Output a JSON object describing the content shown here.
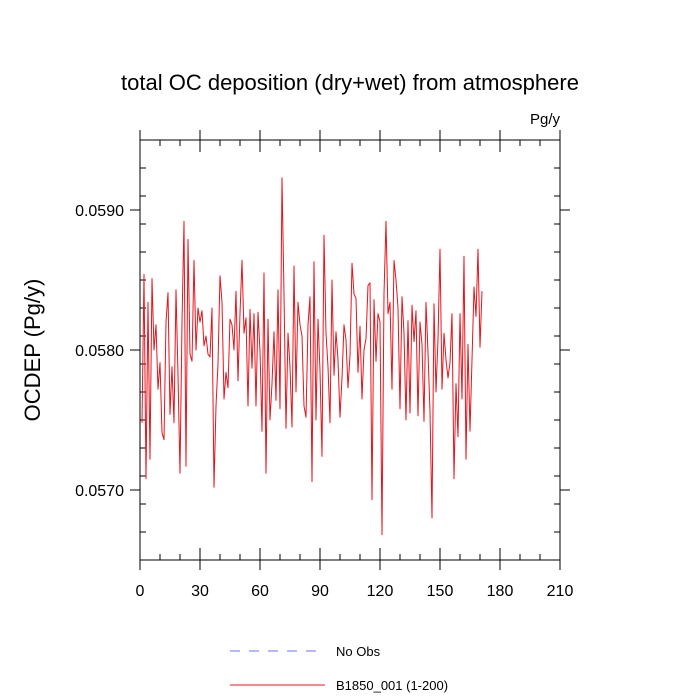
{
  "chart_data": {
    "type": "line",
    "title": "total OC deposition (dry+wet) from atmosphere",
    "units_label": "Pg/y",
    "xlabel": "",
    "ylabel": "OCDEP  (Pg/y)",
    "xlim": [
      0,
      210
    ],
    "ylim": [
      0.0565,
      0.0595
    ],
    "xticks": [
      0,
      30,
      60,
      90,
      120,
      150,
      180,
      210
    ],
    "xtick_labels": [
      "0",
      "30",
      "60",
      "90",
      "120",
      "150",
      "180",
      "210"
    ],
    "yticks": [
      0.057,
      0.058,
      0.059
    ],
    "ytick_labels": [
      "0.0570",
      "0.0580",
      "0.0590"
    ],
    "grid": false,
    "legend_placement": "bottom",
    "series": [
      {
        "name": "No Obs",
        "color": "#6f6fff",
        "style": "dashed",
        "values": []
      },
      {
        "name": "B1850_001 (1-200)",
        "color": "#e8141c",
        "style": "solid",
        "x_start": 1,
        "values": [
          0.05748,
          0.05854,
          0.05708,
          0.05834,
          0.05722,
          0.05851,
          0.058,
          0.05818,
          0.05772,
          0.05791,
          0.05741,
          0.05736,
          0.0582,
          0.05841,
          0.05754,
          0.05788,
          0.05748,
          0.05843,
          0.05782,
          0.05712,
          0.0582,
          0.05892,
          0.05717,
          0.05879,
          0.05797,
          0.05792,
          0.05864,
          0.058,
          0.0583,
          0.0582,
          0.05828,
          0.05803,
          0.0581,
          0.05797,
          0.05795,
          0.0583,
          0.05702,
          0.0576,
          0.0579,
          0.05853,
          0.05834,
          0.05765,
          0.05784,
          0.05773,
          0.05822,
          0.05818,
          0.058,
          0.05842,
          0.05778,
          0.05826,
          0.05864,
          0.05812,
          0.05823,
          0.0576,
          0.05829,
          0.05787,
          0.05826,
          0.0576,
          0.05827,
          0.05799,
          0.05742,
          0.05855,
          0.05712,
          0.05822,
          0.0575,
          0.05776,
          0.05813,
          0.05764,
          0.05843,
          0.05758,
          0.05923,
          0.0584,
          0.05744,
          0.05812,
          0.05788,
          0.05745,
          0.0586,
          0.0577,
          0.05834,
          0.05818,
          0.0581,
          0.0576,
          0.05752,
          0.05818,
          0.05838,
          0.05706,
          0.05863,
          0.0575,
          0.05822,
          0.05785,
          0.05724,
          0.05882,
          0.05812,
          0.05788,
          0.05748,
          0.0585,
          0.05782,
          0.05813,
          0.05793,
          0.05752,
          0.0578,
          0.05818,
          0.05807,
          0.05773,
          0.05796,
          0.05862,
          0.0584,
          0.05837,
          0.05784,
          0.05817,
          0.05765,
          0.058,
          0.05808,
          0.05846,
          0.05848,
          0.05693,
          0.05836,
          0.05792,
          0.05826,
          0.0582,
          0.05668,
          0.0584,
          0.05892,
          0.05826,
          0.05834,
          0.05772,
          0.05864,
          0.0585,
          0.0583,
          0.05758,
          0.05838,
          0.05812,
          0.0575,
          0.05821,
          0.05755,
          0.05832,
          0.05806,
          0.05828,
          0.05753,
          0.0582,
          0.05804,
          0.05749,
          0.05834,
          0.05798,
          0.05756,
          0.0568,
          0.05833,
          0.0577,
          0.05808,
          0.05872,
          0.05772,
          0.05812,
          0.05793,
          0.0578,
          0.05791,
          0.05826,
          0.05708,
          0.05776,
          0.05738,
          0.05826,
          0.05765,
          0.05867,
          0.05722,
          0.05804,
          0.05742,
          0.05793,
          0.05845,
          0.05824,
          0.05872,
          0.05802,
          0.05842
        ]
      }
    ]
  }
}
